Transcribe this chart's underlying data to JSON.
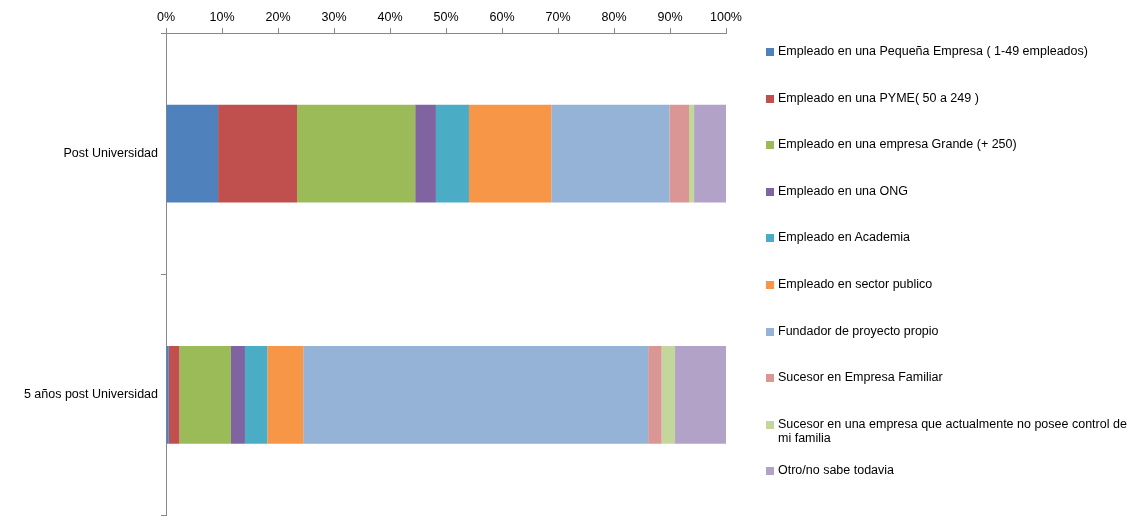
{
  "chart_data": {
    "type": "bar",
    "orientation": "horizontal",
    "stacked": true,
    "categories": [
      "Post Universidad",
      "5 años post Universidad"
    ],
    "series": [
      {
        "name": "Empleado en una Pequeña Empresa ( 1-49 empleados)",
        "color": "#4f81bd",
        "values": [
          9.3,
          0.5
        ]
      },
      {
        "name": "Empleado en una PYME( 50 a 249 )",
        "color": "#c0504d",
        "values": [
          14.1,
          1.9
        ]
      },
      {
        "name": "Empleado en una empresa Grande (+ 250)",
        "color": "#9bbb59",
        "values": [
          21.1,
          9.2
        ]
      },
      {
        "name": "Empleado en una ONG",
        "color": "#8064a2",
        "values": [
          3.7,
          2.5
        ]
      },
      {
        "name": "Empleado en Academia",
        "color": "#4bacc6",
        "values": [
          5.9,
          4.0
        ]
      },
      {
        "name": "Empleado en sector publico",
        "color": "#f79646",
        "values": [
          14.7,
          6.4
        ]
      },
      {
        "name": "Fundador de proyecto propio",
        "color": "#95b3d7",
        "values": [
          21.1,
          61.6
        ]
      },
      {
        "name": "Sucesor en Empresa Familiar",
        "color": "#d99694",
        "values": [
          3.5,
          2.4
        ]
      },
      {
        "name": "Sucesor en una empresa que actualmente no posee control de mi familia",
        "color": "#c3d69b",
        "values": [
          0.9,
          2.4
        ]
      },
      {
        "name": "Otro/no sabe todavia",
        "color": "#b3a2c7",
        "values": [
          5.7,
          9.1
        ]
      }
    ],
    "xlim": [
      0,
      100
    ],
    "xticks": [
      {
        "value": 0,
        "label": "0%"
      },
      {
        "value": 10,
        "label": "10%"
      },
      {
        "value": 20,
        "label": "20%"
      },
      {
        "value": 30,
        "label": "30%"
      },
      {
        "value": 40,
        "label": "40%"
      },
      {
        "value": 50,
        "label": "50%"
      },
      {
        "value": 60,
        "label": "60%"
      },
      {
        "value": 70,
        "label": "70%"
      },
      {
        "value": 80,
        "label": "80%"
      },
      {
        "value": 90,
        "label": "90%"
      },
      {
        "value": 100,
        "label": "100%"
      }
    ],
    "legend": "right",
    "grid": false
  }
}
